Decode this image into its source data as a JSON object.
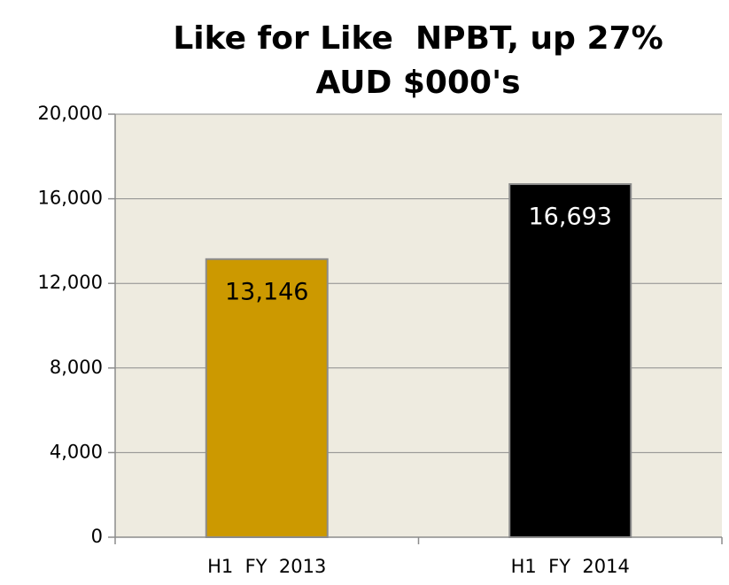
{
  "chart_data": {
    "type": "bar",
    "title": [
      "Like for Like  NPBT, up 27%",
      "AUD $000's"
    ],
    "categories": [
      "H1  FY  2013",
      "H1  FY  2014"
    ],
    "values": [
      13146,
      16693
    ],
    "value_labels": [
      "13,146",
      "16,693"
    ],
    "colors": [
      "#cc9900",
      "#000000"
    ],
    "value_label_colors": [
      "#000000",
      "#ffffff"
    ],
    "ylim": [
      0,
      20000
    ],
    "yticks": [
      0,
      {
        "value": 4000,
        "label": "4,000"
      },
      {
        "value": 8000,
        "label": "8,000"
      },
      {
        "value": 12000,
        "label": "12,000"
      },
      {
        "value": 16000,
        "label": "16,000"
      },
      {
        "value": 20000,
        "label": "20,000"
      }
    ],
    "grid": true
  }
}
